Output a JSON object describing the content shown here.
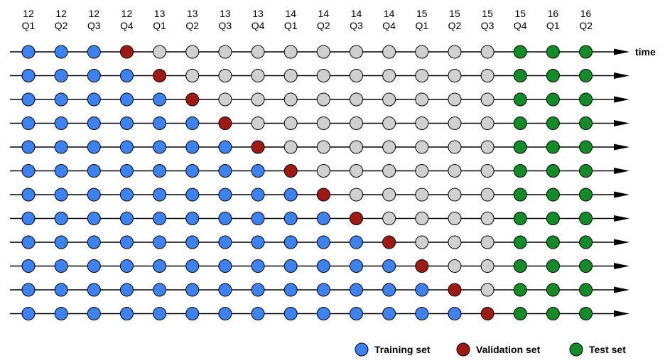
{
  "columns": [
    {
      "year": "12",
      "quarter": "Q1"
    },
    {
      "year": "12",
      "quarter": "Q2"
    },
    {
      "year": "12",
      "quarter": "Q3"
    },
    {
      "year": "12",
      "quarter": "Q4"
    },
    {
      "year": "13",
      "quarter": "Q1"
    },
    {
      "year": "13",
      "quarter": "Q2"
    },
    {
      "year": "13",
      "quarter": "Q3"
    },
    {
      "year": "13",
      "quarter": "Q4"
    },
    {
      "year": "14",
      "quarter": "Q1"
    },
    {
      "year": "14",
      "quarter": "Q2"
    },
    {
      "year": "14",
      "quarter": "Q3"
    },
    {
      "year": "14",
      "quarter": "Q4"
    },
    {
      "year": "15",
      "quarter": "Q1"
    },
    {
      "year": "15",
      "quarter": "Q2"
    },
    {
      "year": "15",
      "quarter": "Q3"
    },
    {
      "year": "15",
      "quarter": "Q4"
    },
    {
      "year": "16",
      "quarter": "Q1"
    },
    {
      "year": "16",
      "quarter": "Q2"
    }
  ],
  "axis_label": "time",
  "rows": [
    {
      "validation_index": 3
    },
    {
      "validation_index": 4
    },
    {
      "validation_index": 5
    },
    {
      "validation_index": 6
    },
    {
      "validation_index": 7
    },
    {
      "validation_index": 8
    },
    {
      "validation_index": 9
    },
    {
      "validation_index": 10
    },
    {
      "validation_index": 11
    },
    {
      "validation_index": 12
    },
    {
      "validation_index": 13
    },
    {
      "validation_index": 14
    }
  ],
  "test_start_index": 15,
  "colors": {
    "training": "#3c82f0",
    "validation": "#a01a14",
    "unused": "#d0d0d0",
    "test": "#128c26",
    "stroke": "#000000"
  },
  "legend": [
    {
      "key": "training",
      "label": "Training set"
    },
    {
      "key": "validation",
      "label": "Validation set"
    },
    {
      "key": "test",
      "label": "Test set"
    }
  ]
}
